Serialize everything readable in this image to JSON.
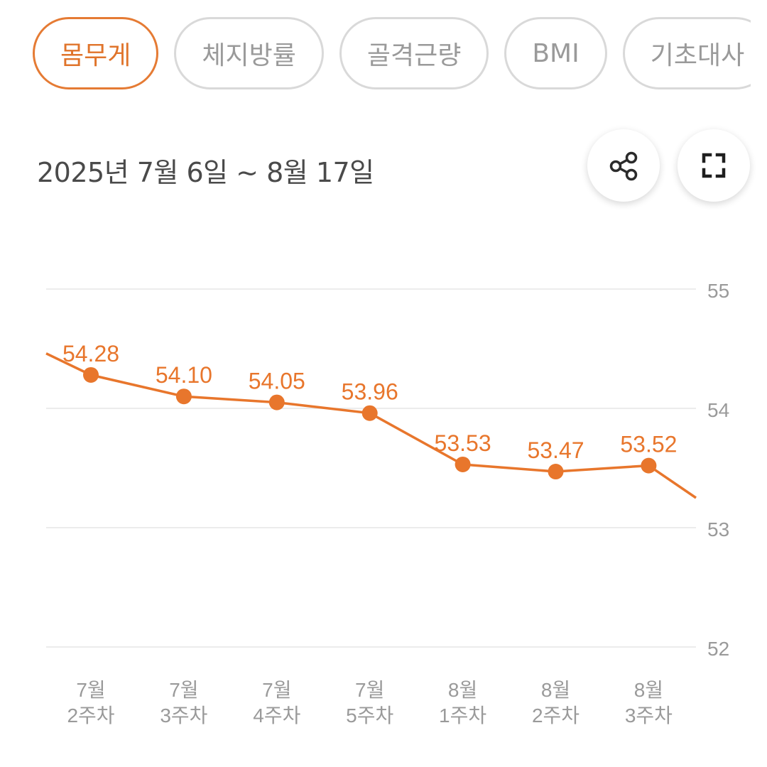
{
  "tabs": [
    {
      "label": "몸무게",
      "active": true
    },
    {
      "label": "체지방률",
      "active": false
    },
    {
      "label": "골격근량",
      "active": false
    },
    {
      "label": "BMI",
      "active": false
    },
    {
      "label": "기초대사",
      "active": false
    }
  ],
  "header": {
    "date_range": "2025년 7월 6일 ~ 8월 17일"
  },
  "icons": {
    "share": "share-icon",
    "fullscreen": "fullscreen-icon"
  },
  "colors": {
    "accent": "#E8762C",
    "grid": "#E6E6E6",
    "axis_text": "#9A9A9A"
  },
  "chart_data": {
    "type": "line",
    "title": "",
    "xlabel": "",
    "ylabel": "",
    "categories": [
      [
        "7월",
        "2주차"
      ],
      [
        "7월",
        "3주차"
      ],
      [
        "7월",
        "4주차"
      ],
      [
        "7월",
        "5주차"
      ],
      [
        "8월",
        "1주차"
      ],
      [
        "8월",
        "2주차"
      ],
      [
        "8월",
        "3주차"
      ]
    ],
    "series": [
      {
        "name": "몸무게",
        "values": [
          54.28,
          54.1,
          54.05,
          53.96,
          53.53,
          53.47,
          53.52
        ]
      }
    ],
    "value_labels": [
      "54.28",
      "54.10",
      "54.05",
      "53.96",
      "53.53",
      "53.47",
      "53.52"
    ],
    "lead_in_value": 54.46,
    "lead_out_value": 53.25,
    "ylim": [
      52,
      55
    ],
    "yticks": [
      55,
      54,
      53,
      52
    ],
    "grid": true,
    "y_axis_side": "right"
  }
}
